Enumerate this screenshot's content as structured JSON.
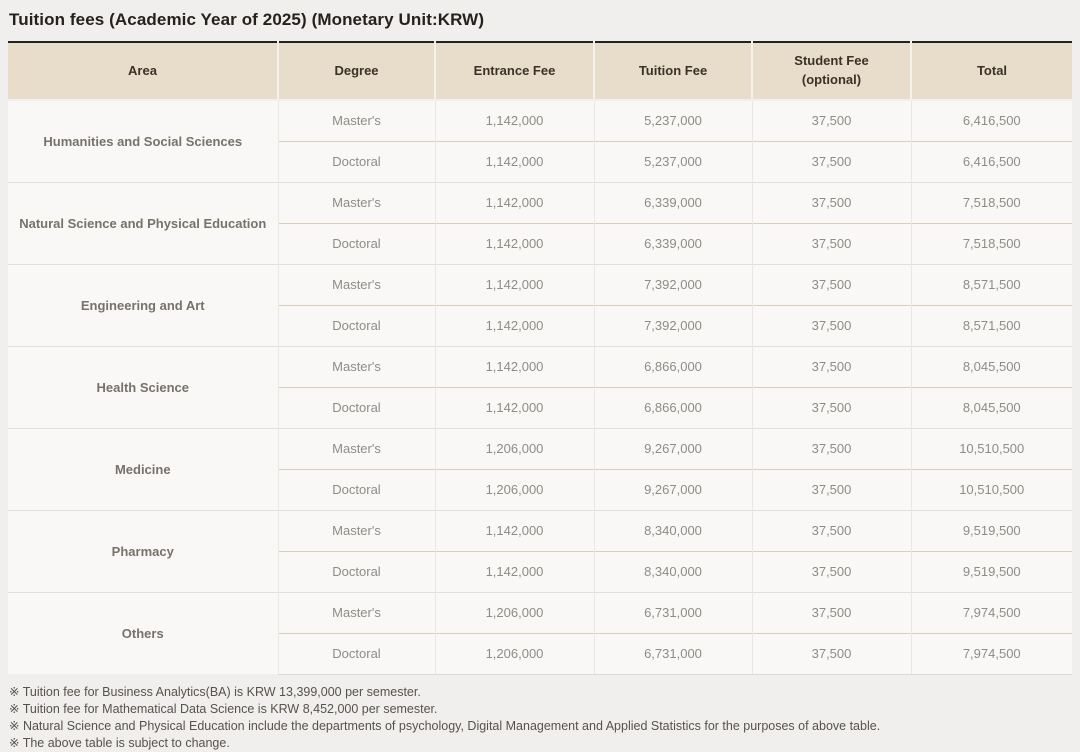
{
  "page": {
    "title": "Tuition fees (Academic Year of 2025) (Monetary Unit:KRW)"
  },
  "colors": {
    "page_background": "#f1efed",
    "header_background": "#e7ddca",
    "table_top_border": "#24211d",
    "inner_row_divider": "#d9ceba",
    "group_divider": "#e2e0dd"
  },
  "table": {
    "columns": [
      {
        "label": "Area"
      },
      {
        "label": "Degree"
      },
      {
        "label": "Entrance Fee"
      },
      {
        "label": "Tuition Fee"
      },
      {
        "label": "Student Fee",
        "sublabel": "(optional)"
      },
      {
        "label": "Total"
      }
    ],
    "groups": [
      {
        "area": "Humanities and Social Sciences",
        "rows": [
          {
            "degree": "Master's",
            "entrance_fee": "1,142,000",
            "tuition_fee": "5,237,000",
            "student_fee": "37,500",
            "total": "6,416,500"
          },
          {
            "degree": "Doctoral",
            "entrance_fee": "1,142,000",
            "tuition_fee": "5,237,000",
            "student_fee": "37,500",
            "total": "6,416,500"
          }
        ]
      },
      {
        "area": "Natural Science and Physical Education",
        "rows": [
          {
            "degree": "Master's",
            "entrance_fee": "1,142,000",
            "tuition_fee": "6,339,000",
            "student_fee": "37,500",
            "total": "7,518,500"
          },
          {
            "degree": "Doctoral",
            "entrance_fee": "1,142,000",
            "tuition_fee": "6,339,000",
            "student_fee": "37,500",
            "total": "7,518,500"
          }
        ]
      },
      {
        "area": "Engineering and Art",
        "rows": [
          {
            "degree": "Master's",
            "entrance_fee": "1,142,000",
            "tuition_fee": "7,392,000",
            "student_fee": "37,500",
            "total": "8,571,500"
          },
          {
            "degree": "Doctoral",
            "entrance_fee": "1,142,000",
            "tuition_fee": "7,392,000",
            "student_fee": "37,500",
            "total": "8,571,500"
          }
        ]
      },
      {
        "area": "Health Science",
        "rows": [
          {
            "degree": "Master's",
            "entrance_fee": "1,142,000",
            "tuition_fee": "6,866,000",
            "student_fee": "37,500",
            "total": "8,045,500"
          },
          {
            "degree": "Doctoral",
            "entrance_fee": "1,142,000",
            "tuition_fee": "6,866,000",
            "student_fee": "37,500",
            "total": "8,045,500"
          }
        ]
      },
      {
        "area": "Medicine",
        "rows": [
          {
            "degree": "Master's",
            "entrance_fee": "1,206,000",
            "tuition_fee": "9,267,000",
            "student_fee": "37,500",
            "total": "10,510,500"
          },
          {
            "degree": "Doctoral",
            "entrance_fee": "1,206,000",
            "tuition_fee": "9,267,000",
            "student_fee": "37,500",
            "total": "10,510,500"
          }
        ]
      },
      {
        "area": "Pharmacy",
        "rows": [
          {
            "degree": "Master's",
            "entrance_fee": "1,142,000",
            "tuition_fee": "8,340,000",
            "student_fee": "37,500",
            "total": "9,519,500"
          },
          {
            "degree": "Doctoral",
            "entrance_fee": "1,142,000",
            "tuition_fee": "8,340,000",
            "student_fee": "37,500",
            "total": "9,519,500"
          }
        ]
      },
      {
        "area": "Others",
        "rows": [
          {
            "degree": "Master's",
            "entrance_fee": "1,206,000",
            "tuition_fee": "6,731,000",
            "student_fee": "37,500",
            "total": "7,974,500"
          },
          {
            "degree": "Doctoral",
            "entrance_fee": "1,206,000",
            "tuition_fee": "6,731,000",
            "student_fee": "37,500",
            "total": "7,974,500"
          }
        ]
      }
    ]
  },
  "footnotes": [
    "※ Tuition fee for Business Analytics(BA) is KRW 13,399,000 per semester.",
    "※ Tuition fee for Mathematical Data Science is KRW 8,452,000 per semester.",
    "※ Natural Science and Physical Education include the departments of psychology, Digital Management and Applied Statistics for the purposes of above table.",
    "※ The above table is subject to change."
  ]
}
